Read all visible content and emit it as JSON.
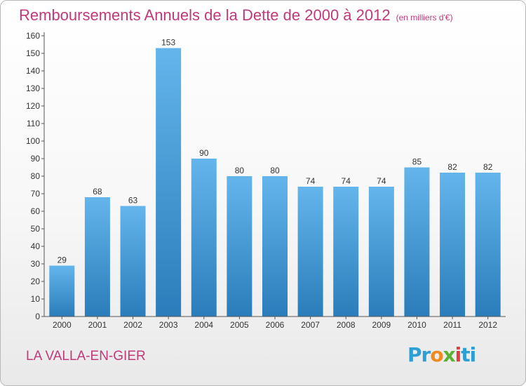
{
  "chart_data": {
    "type": "bar",
    "title": "Remboursements Annuels de la Dette de 2000 à 2012",
    "subtitle": "(en milliers d'€)",
    "categories": [
      "2000",
      "2001",
      "2002",
      "2003",
      "2004",
      "2005",
      "2006",
      "2007",
      "2008",
      "2009",
      "2010",
      "2011",
      "2012"
    ],
    "values": [
      29,
      68,
      63,
      153,
      90,
      80,
      80,
      74,
      74,
      74,
      85,
      82,
      82
    ],
    "xlabel": "",
    "ylabel": "",
    "ylim": [
      0,
      160
    ],
    "yticks": [
      0,
      10,
      20,
      30,
      40,
      50,
      60,
      70,
      80,
      90,
      100,
      110,
      120,
      130,
      140,
      150,
      160
    ],
    "grid": false,
    "legend": "none",
    "bar_color": "#3f97d6"
  },
  "footer": {
    "commune": "LA VALLA-EN-GIER",
    "logo": "Proxiti"
  },
  "colors": {
    "title": "#c0397b",
    "bar_top": "#64b5ec",
    "bar_bottom": "#2a7dba"
  }
}
